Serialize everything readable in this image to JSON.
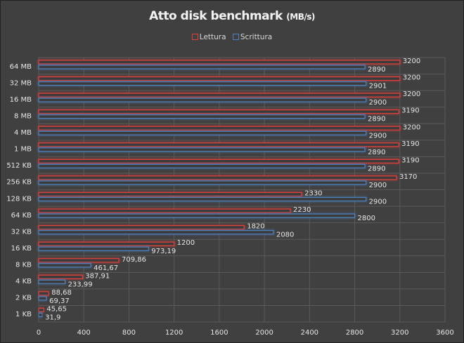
{
  "chart_data": {
    "type": "bar",
    "orientation": "horizontal",
    "title": "Atto disk benchmark",
    "title_unit": "(MB/s)",
    "xlabel": "",
    "ylabel": "",
    "xlim": [
      0,
      3600
    ],
    "xticks": [
      "0",
      "400",
      "800",
      "1200",
      "1600",
      "2000",
      "2400",
      "2800",
      "3200",
      "3600"
    ],
    "grid": true,
    "legend_position": "top",
    "categories": [
      "64 MB",
      "32 MB",
      "16 MB",
      "8 MB",
      "4 MB",
      "1 MB",
      "512 KB",
      "256 KB",
      "128 KB",
      "64 KB",
      "32 KB",
      "16 KB",
      "8 KB",
      "4 KB",
      "2 KB",
      "1 KB"
    ],
    "series": [
      {
        "name": "Lettura",
        "color": "#e0413c",
        "values": [
          3200,
          3200,
          3200,
          3190,
          3200,
          3190,
          3190,
          3170,
          2330,
          2230,
          1820,
          1200,
          709.86,
          387.91,
          88.68,
          45.65
        ],
        "labels": [
          "3200",
          "3200",
          "3200",
          "3190",
          "3200",
          "3190",
          "3190",
          "3170",
          "2330",
          "2230",
          "1820",
          "1200",
          "709,86",
          "387,91",
          "88,68",
          "45,65"
        ]
      },
      {
        "name": "Scrittura",
        "color": "#4f81bd",
        "values": [
          2890,
          2901,
          2900,
          2890,
          2900,
          2890,
          2890,
          2900,
          2900,
          2800,
          2080,
          973.19,
          461.67,
          233.99,
          69.37,
          31.9
        ],
        "labels": [
          "2890",
          "2901",
          "2900",
          "2890",
          "2900",
          "2890",
          "2890",
          "2900",
          "2900",
          "2800",
          "2080",
          "973,19",
          "461,67",
          "233,99",
          "69,37",
          "31,9"
        ]
      }
    ]
  }
}
